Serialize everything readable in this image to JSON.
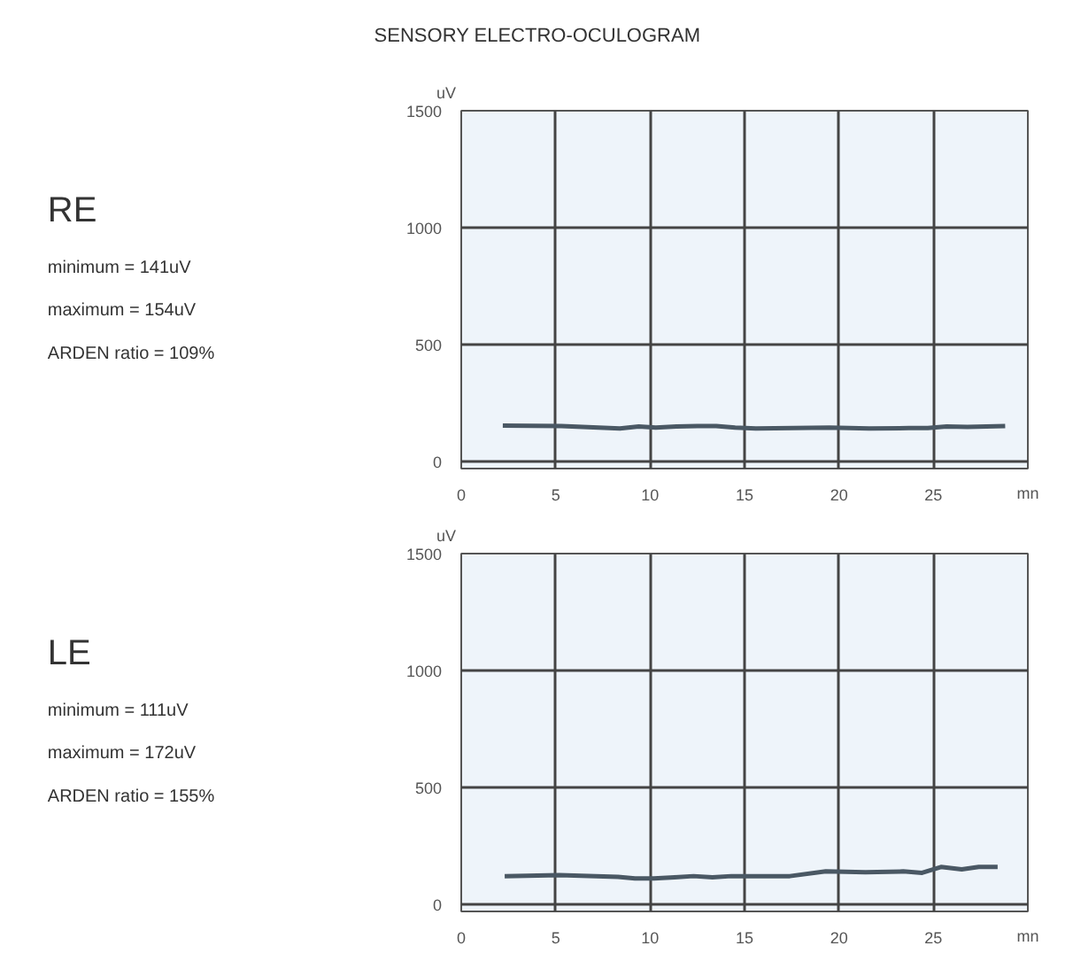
{
  "chart_data": [
    {
      "type": "line",
      "title": "SENSORY ELECTRO-OCULOGRAM",
      "xlabel": "mn",
      "ylabel": "uV",
      "annotations": [
        "RE",
        "minimum = 141uV",
        "maximum = 154uV",
        "ARDEN ratio = 109%"
      ],
      "x": [
        2.2,
        5.3,
        8.4,
        9.4,
        10.3,
        11.4,
        12.5,
        13.5,
        14.5,
        15.6,
        17.6,
        19.5,
        21.6,
        23.7,
        24.7,
        25.7,
        26.8,
        27.8,
        28.8
      ],
      "series": [
        {
          "color": "#4a5864",
          "values": [
            154,
            152,
            141,
            150,
            145,
            150,
            152,
            152,
            145,
            141,
            143,
            145,
            141,
            143,
            143,
            150,
            148,
            150,
            152
          ]
        }
      ],
      "xlim": [
        0,
        30
      ],
      "ylim": [
        -30,
        1500
      ],
      "xticks": [
        0,
        5,
        10,
        15,
        20,
        25
      ],
      "yticks": [
        0,
        500,
        1000,
        1500
      ],
      "grid": true,
      "marker": "none",
      "line_style": "solid"
    },
    {
      "type": "line",
      "xlabel": "mn",
      "ylabel": "uV",
      "annotations": [
        "LE",
        "minimum = 111uV",
        "maximum = 172uV",
        "ARDEN ratio = 155%"
      ],
      "x": [
        2.3,
        5.2,
        8.3,
        9.2,
        10.2,
        11.3,
        12.3,
        13.3,
        14.3,
        15.4,
        17.4,
        19.3,
        21.4,
        23.4,
        24.4,
        25.4,
        26.5,
        27.4,
        28.4
      ],
      "series": [
        {
          "color": "#4a5864",
          "values": [
            121,
            125,
            118,
            111,
            111,
            116,
            121,
            116,
            121,
            121,
            121,
            141,
            138,
            141,
            135,
            160,
            150,
            160,
            160
          ]
        }
      ],
      "xlim": [
        0,
        30
      ],
      "ylim": [
        -30,
        1500
      ],
      "xticks": [
        0,
        5,
        10,
        15,
        20,
        25
      ],
      "yticks": [
        0,
        500,
        1000,
        1500
      ],
      "grid": true,
      "marker": "none",
      "line_style": "solid"
    }
  ]
}
